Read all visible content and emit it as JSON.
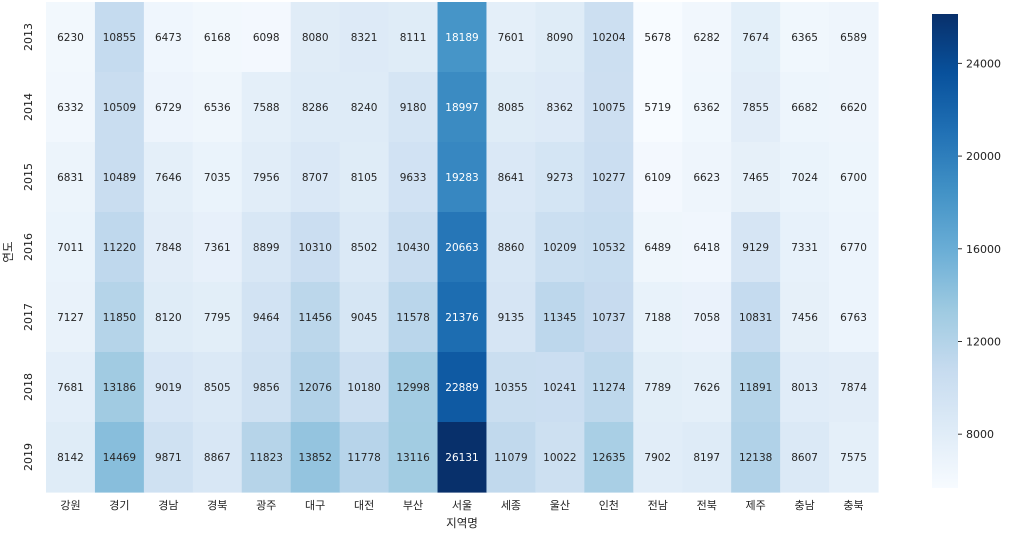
{
  "chart_data": {
    "type": "heatmap",
    "title": "",
    "xlabel": "지역명",
    "ylabel": "연도",
    "x": [
      "강원",
      "경기",
      "경남",
      "경북",
      "광주",
      "대구",
      "대전",
      "부산",
      "서울",
      "세종",
      "울산",
      "인천",
      "전남",
      "전북",
      "제주",
      "충남",
      "충북"
    ],
    "y": [
      "2013",
      "2014",
      "2015",
      "2016",
      "2017",
      "2018",
      "2019"
    ],
    "values": [
      [
        6230,
        10855,
        6473,
        6168,
        6098,
        8080,
        8321,
        8111,
        18189,
        7601,
        8090,
        10204,
        5678,
        6282,
        7674,
        6365,
        6589
      ],
      [
        6332,
        10509,
        6729,
        6536,
        7588,
        8286,
        8240,
        9180,
        18997,
        8085,
        8362,
        10075,
        5719,
        6362,
        7855,
        6682,
        6620
      ],
      [
        6831,
        10489,
        7646,
        7035,
        7956,
        8707,
        8105,
        9633,
        19283,
        8641,
        9273,
        10277,
        6109,
        6623,
        7465,
        7024,
        6700
      ],
      [
        7011,
        11220,
        7848,
        7361,
        8899,
        10310,
        8502,
        10430,
        20663,
        8860,
        10209,
        10532,
        6489,
        6418,
        9129,
        7331,
        6770
      ],
      [
        7127,
        11850,
        8120,
        7795,
        9464,
        11456,
        9045,
        11578,
        21376,
        9135,
        11345,
        10737,
        7188,
        7058,
        10831,
        7456,
        6763
      ],
      [
        7681,
        13186,
        9019,
        8505,
        9856,
        12076,
        10180,
        12998,
        22889,
        10355,
        10241,
        11274,
        7789,
        7626,
        11891,
        8013,
        7874
      ],
      [
        8142,
        14469,
        9871,
        8867,
        11823,
        13852,
        11778,
        13116,
        26131,
        11079,
        10022,
        12635,
        7902,
        8197,
        12138,
        8607,
        7575
      ]
    ],
    "colorbar": {
      "ticks": [
        8000,
        12000,
        16000,
        20000,
        24000
      ],
      "range": [
        5678,
        26131
      ]
    },
    "colormap": "Blues",
    "grid": false
  }
}
